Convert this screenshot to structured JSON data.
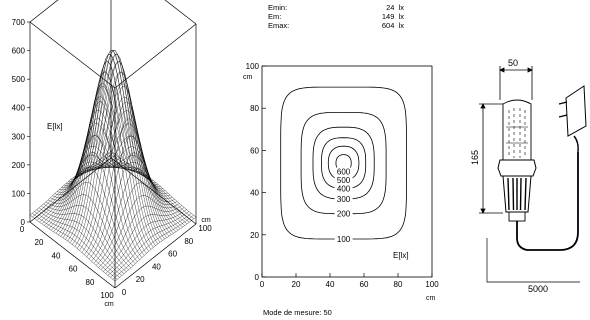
{
  "stats": {
    "rows": [
      {
        "label": "Emin:",
        "value": "24",
        "unit": "lx"
      },
      {
        "label": "Em:",
        "value": "149",
        "unit": "lx"
      },
      {
        "label": "Emax:",
        "value": "604",
        "unit": "lx"
      }
    ]
  },
  "footer": {
    "text": "Mode de mesure: 50"
  },
  "chart_data": [
    {
      "type": "surface3d",
      "zlabel": "E[lx]",
      "zticks": [
        "0",
        "100",
        "200",
        "300",
        "400",
        "500",
        "600",
        "700"
      ],
      "xticks": [
        "0",
        "20",
        "40",
        "60",
        "80",
        "100"
      ],
      "xunit": "cm",
      "yticks": [
        "0",
        "20",
        "40",
        "60",
        "80",
        "100"
      ],
      "yunit": "cm",
      "zlim": [
        0,
        700
      ],
      "peak": {
        "x": 50,
        "y": 50,
        "z": 604
      },
      "floor": 24
    },
    {
      "type": "contour",
      "legend_label": "E[lx]",
      "xticks": [
        "0",
        "20",
        "40",
        "60",
        "80",
        "100"
      ],
      "xunit": "cm",
      "yticks": [
        "0",
        "20",
        "40",
        "60",
        "80",
        "100"
      ],
      "yunit": "cm",
      "xlim": [
        0,
        100
      ],
      "ylim": [
        0,
        100
      ],
      "levels": [
        {
          "value": 100,
          "label": "100"
        },
        {
          "value": 200,
          "label": "200"
        },
        {
          "value": 300,
          "label": "300"
        },
        {
          "value": 400,
          "label": "400"
        },
        {
          "value": 500,
          "label": "500"
        },
        {
          "value": 600,
          "label": "600"
        }
      ]
    }
  ],
  "diagram": {
    "width_dim": "50",
    "height_dim": "165",
    "cable_dim": "5000"
  }
}
